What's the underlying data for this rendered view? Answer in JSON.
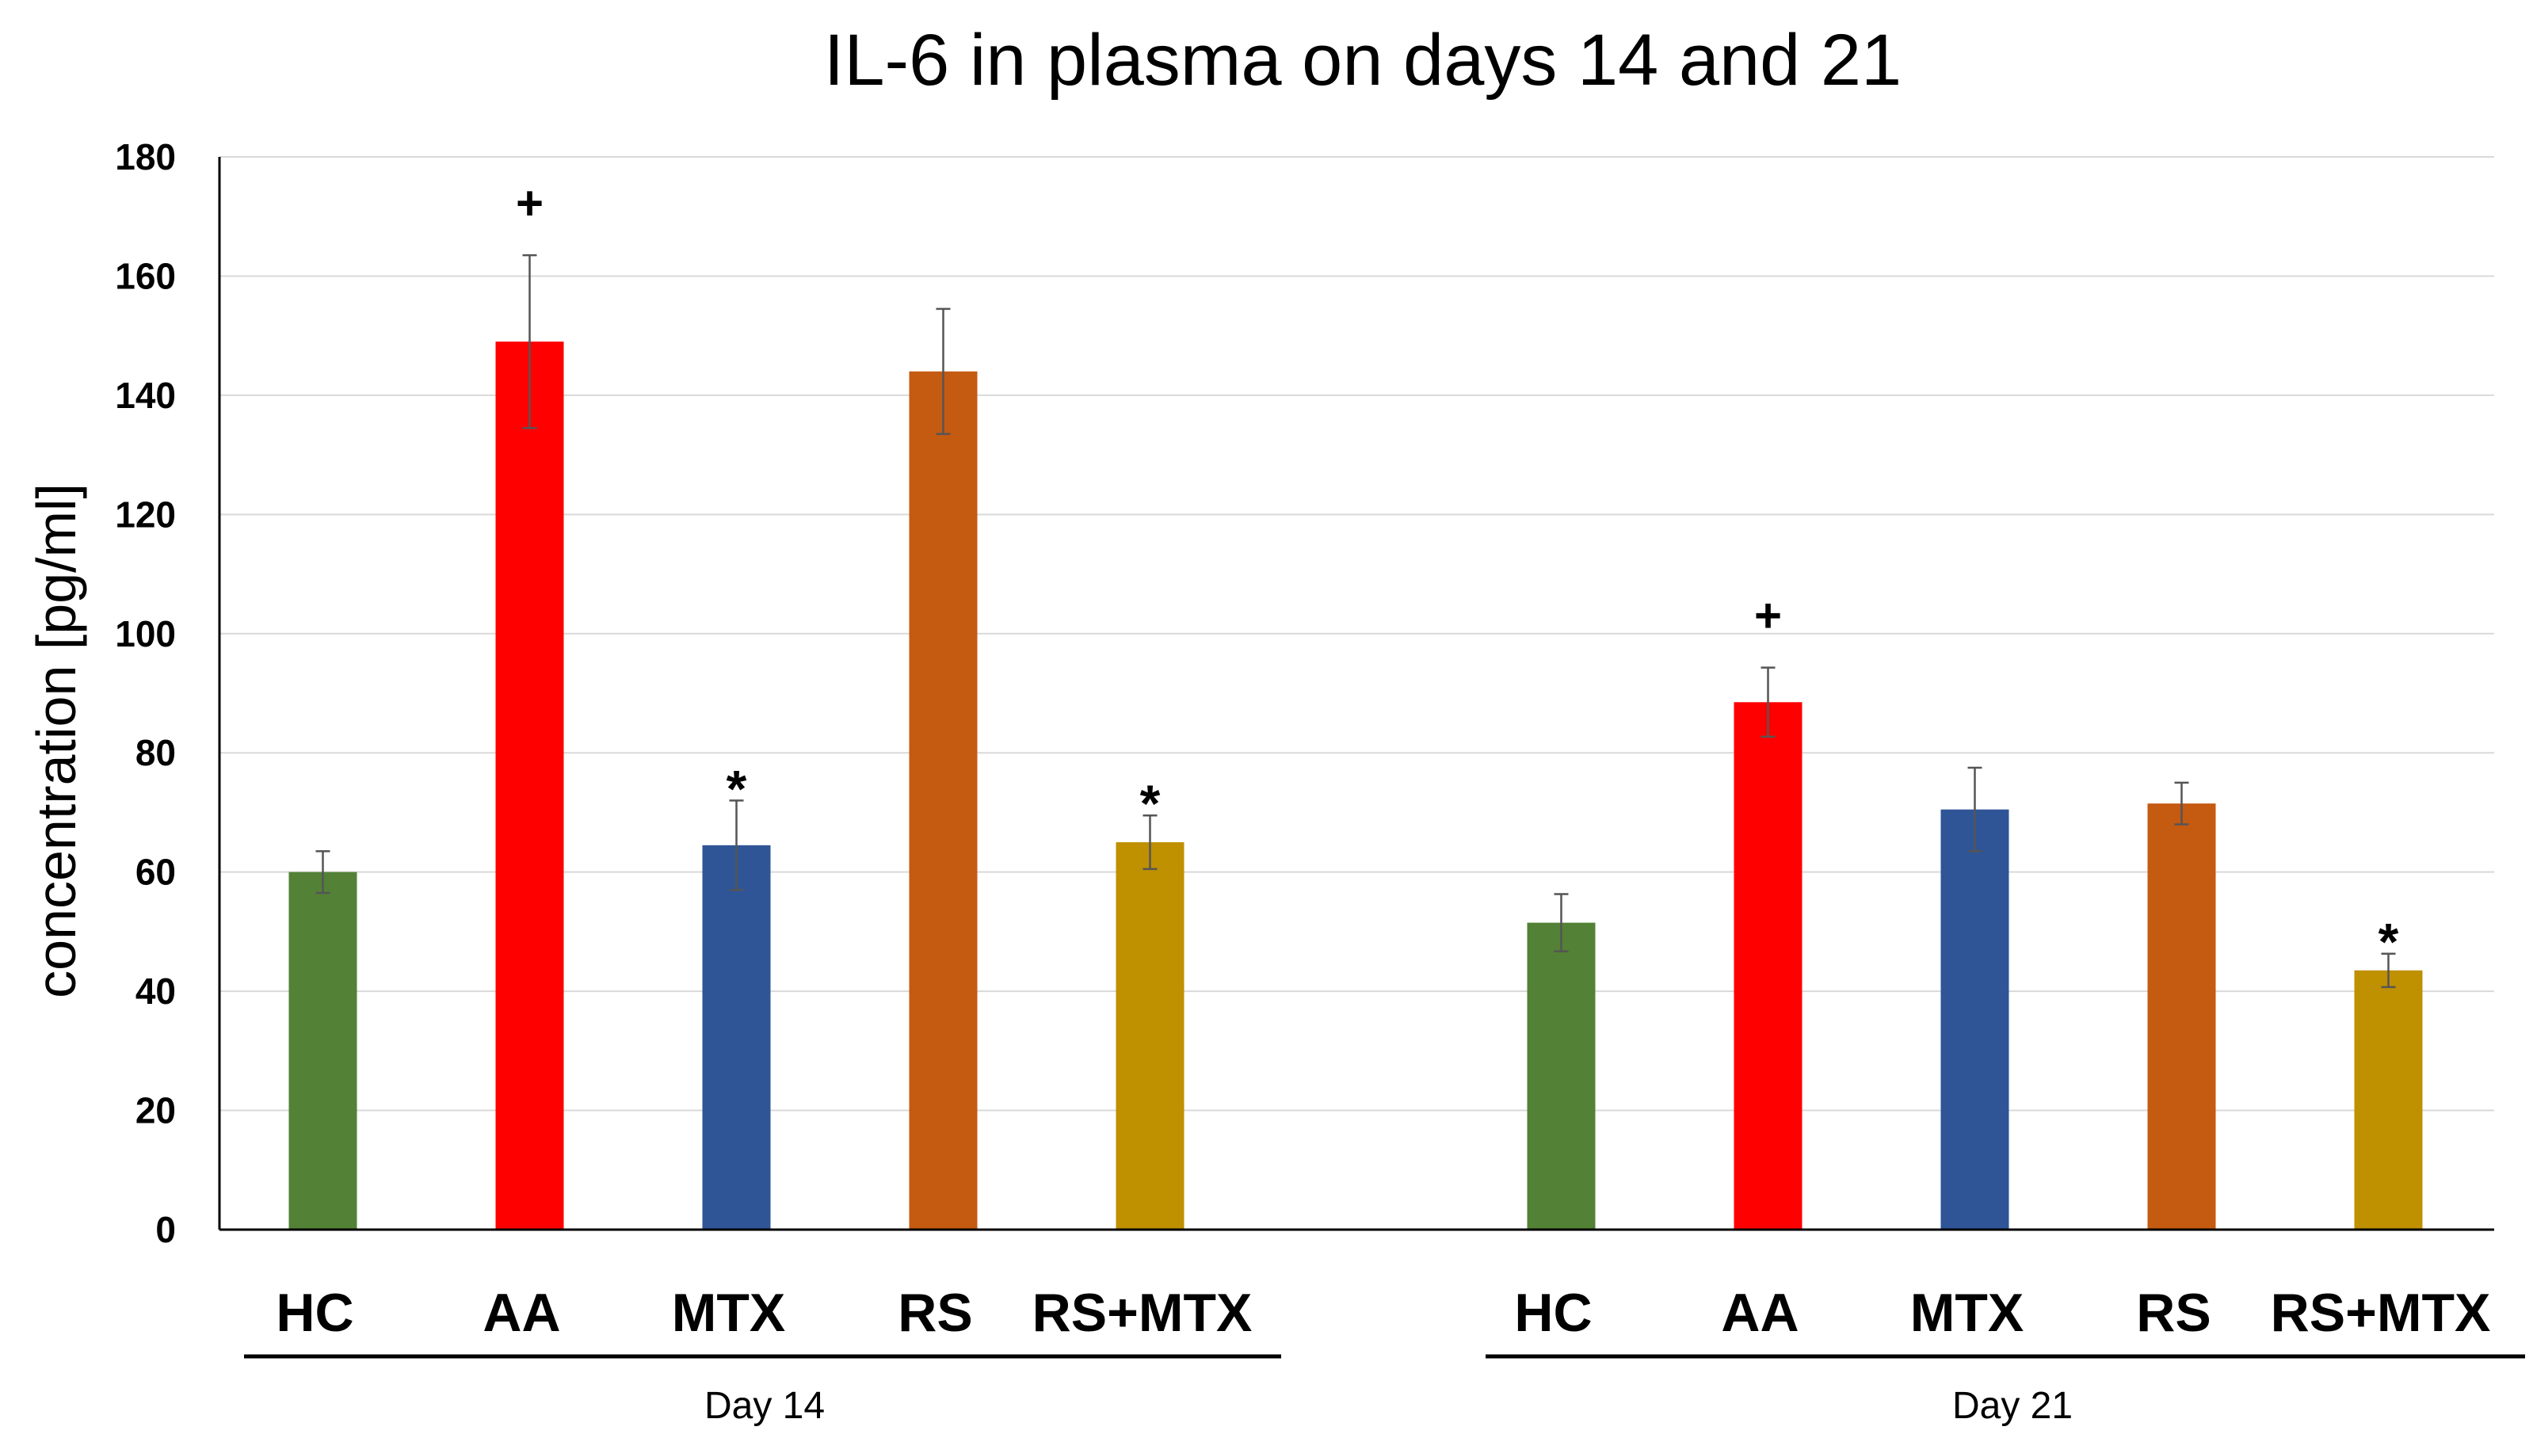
{
  "chart_data": {
    "type": "bar",
    "title": "IL-6 in plasma on days 14 and 21",
    "ylabel": "concentration [pg/ml]",
    "xlabel": "",
    "ylim": [
      0,
      180
    ],
    "yticks": [
      0,
      20,
      40,
      60,
      80,
      100,
      120,
      140,
      160,
      180
    ],
    "grid": true,
    "groups": [
      {
        "name": "Day 14",
        "bars": [
          {
            "category": "HC",
            "value": 60,
            "error": 3.5,
            "color": "#538135",
            "marker": ""
          },
          {
            "category": "AA",
            "value": 149,
            "error": 14.5,
            "color": "#FF0000",
            "marker": "+"
          },
          {
            "category": "MTX",
            "value": 64.5,
            "error": 7.5,
            "color": "#2F5597",
            "marker": "*"
          },
          {
            "category": "RS",
            "value": 144,
            "error": 10.5,
            "color": "#C55A11",
            "marker": ""
          },
          {
            "category": "RS+MTX",
            "value": 65,
            "error": 4.5,
            "color": "#BF9000",
            "marker": "*"
          }
        ]
      },
      {
        "name": "Day 21",
        "bars": [
          {
            "category": "HC",
            "value": 51.5,
            "error": 4.8,
            "color": "#538135",
            "marker": ""
          },
          {
            "category": "AA",
            "value": 88.5,
            "error": 5.8,
            "color": "#FF0000",
            "marker": "+"
          },
          {
            "category": "MTX",
            "value": 70.5,
            "error": 7,
            "color": "#2F5597",
            "marker": ""
          },
          {
            "category": "RS",
            "value": 71.5,
            "error": 3.5,
            "color": "#C55A11",
            "marker": ""
          },
          {
            "category": "RS+MTX",
            "value": 43.5,
            "error": 2.8,
            "color": "#BF9000",
            "marker": "*"
          }
        ]
      }
    ]
  }
}
